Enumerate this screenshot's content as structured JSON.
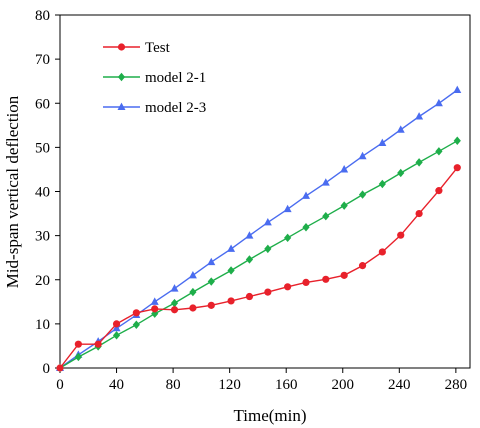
{
  "chart_data": {
    "type": "line",
    "xlabel": "Time(min)",
    "ylabel": "Mid-span vertical deflection",
    "xlim": [
      0,
      290
    ],
    "ylim": [
      0,
      80
    ],
    "xticks": [
      0,
      40,
      80,
      120,
      160,
      200,
      240,
      280
    ],
    "yticks": [
      0,
      10,
      20,
      30,
      40,
      50,
      60,
      70,
      80
    ],
    "grid": false,
    "legend_position": "top-left",
    "series": [
      {
        "name": "Test",
        "color": "#e8212b",
        "marker": "circle",
        "x": [
          0,
          13,
          27,
          40,
          54,
          67,
          81,
          94,
          107,
          121,
          134,
          147,
          161,
          174,
          188,
          201,
          214,
          228,
          241,
          254,
          268,
          281
        ],
        "y": [
          0,
          5.4,
          5.4,
          10,
          12.5,
          13.4,
          13.2,
          13.6,
          14.2,
          15.2,
          16.2,
          17.2,
          18.4,
          19.4,
          20.1,
          21,
          23.2,
          26.3,
          30.1,
          35,
          40.2,
          45.4
        ]
      },
      {
        "name": "model 2-1",
        "color": "#1eae4a",
        "marker": "diamond",
        "x": [
          0,
          13,
          27,
          40,
          54,
          67,
          81,
          94,
          107,
          121,
          134,
          147,
          161,
          174,
          188,
          201,
          214,
          228,
          241,
          254,
          268,
          281
        ],
        "y": [
          0,
          2.5,
          4.9,
          7.4,
          9.8,
          12.3,
          14.7,
          17.2,
          19.6,
          22.1,
          24.6,
          27,
          29.5,
          31.9,
          34.4,
          36.8,
          39.3,
          41.7,
          44.2,
          46.6,
          49.1,
          51.5
        ]
      },
      {
        "name": "model 2-3",
        "color": "#4a6cf0",
        "marker": "triangle",
        "x": [
          0,
          13,
          27,
          40,
          54,
          67,
          81,
          94,
          107,
          121,
          134,
          147,
          161,
          174,
          188,
          201,
          214,
          228,
          241,
          254,
          268,
          281
        ],
        "y": [
          0,
          3,
          6,
          9,
          12,
          15,
          18,
          21,
          24,
          27,
          30,
          33,
          36,
          39,
          42,
          45,
          48,
          51,
          54,
          57,
          60,
          63
        ]
      }
    ]
  }
}
